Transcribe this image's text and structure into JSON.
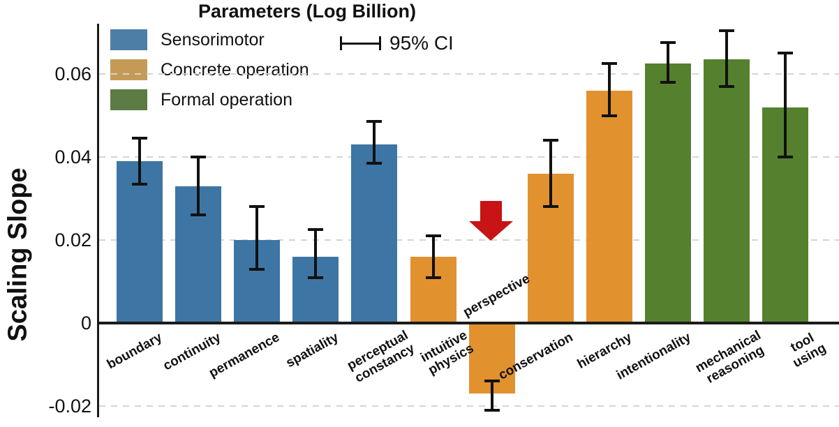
{
  "colors": {
    "background": "#ffffff",
    "axis": "#1b1b1b",
    "grid": "#d4d4d4",
    "text": "#111111",
    "error_bar": "#111111",
    "arrow": "#c81414"
  },
  "legend": {
    "items": [
      {
        "label": "Sensorimotor",
        "color": "#4d7ea6"
      },
      {
        "label": "Concrete operation",
        "color": "#c59a57"
      },
      {
        "label": "Formal operation",
        "color": "#5c7b45"
      }
    ],
    "ci_label": "95% CI"
  },
  "chart_data": {
    "type": "bar",
    "title": "Parameters (Log Billion)",
    "xlabel": "",
    "ylabel": "Scaling Slope",
    "ylim": [
      -0.024,
      0.072
    ],
    "grid": "horizontal-dashed",
    "legend_position": "top-left-inside",
    "error_bars": "95% CI",
    "yticks": [
      {
        "value": 0.06,
        "label": "0.06"
      },
      {
        "value": 0.04,
        "label": "0.04"
      },
      {
        "value": 0.02,
        "label": "0.02"
      },
      {
        "value": 0,
        "label": "0"
      },
      {
        "value": -0.02,
        "label": "-0.02"
      }
    ],
    "groups": [
      {
        "name": "Sensorimotor",
        "color": "#3d76a4"
      },
      {
        "name": "Concrete operation",
        "color": "#e2912f"
      },
      {
        "name": "Formal operation",
        "color": "#55812e"
      }
    ],
    "categories": [
      "boundary",
      "continuity",
      "permanence",
      "spatiality",
      "perceptual constancy",
      "intuitive physics",
      "perspective",
      "conservation",
      "hierarchy",
      "intentionality",
      "mechanical reasoning",
      "tool using"
    ],
    "points": [
      {
        "label": "boundary",
        "group": "Sensorimotor",
        "value": 0.039,
        "ci": [
          0.0335,
          0.0445
        ]
      },
      {
        "label": "continuity",
        "group": "Sensorimotor",
        "value": 0.033,
        "ci": [
          0.026,
          0.04
        ]
      },
      {
        "label": "permanence",
        "group": "Sensorimotor",
        "value": 0.02,
        "ci": [
          0.013,
          0.028
        ]
      },
      {
        "label": "spatiality",
        "group": "Sensorimotor",
        "value": 0.016,
        "ci": [
          0.011,
          0.0225
        ]
      },
      {
        "label": "perceptual\nconstancy",
        "group": "Sensorimotor",
        "value": 0.043,
        "ci": [
          0.0385,
          0.0485
        ]
      },
      {
        "label": "intuitive\nphysics",
        "group": "Concrete operation",
        "value": 0.016,
        "ci": [
          0.011,
          0.021
        ]
      },
      {
        "label": "perspective",
        "group": "Concrete operation",
        "value": -0.017,
        "ci": [
          -0.021,
          -0.014
        ],
        "annotation": "red-down-arrow",
        "label_position": "above-axis"
      },
      {
        "label": "conservation",
        "group": "Concrete operation",
        "value": 0.036,
        "ci": [
          0.028,
          0.044
        ]
      },
      {
        "label": "hierarchy",
        "group": "Concrete operation",
        "value": 0.056,
        "ci": [
          0.05,
          0.0625
        ]
      },
      {
        "label": "intentionality",
        "group": "Formal operation",
        "value": 0.0625,
        "ci": [
          0.058,
          0.0675
        ]
      },
      {
        "label": "mechanical\nreasoning",
        "group": "Formal operation",
        "value": 0.0635,
        "ci": [
          0.057,
          0.0705
        ]
      },
      {
        "label": "tool\nusing",
        "group": "Formal operation",
        "value": 0.052,
        "ci": [
          0.04,
          0.065
        ]
      }
    ]
  }
}
